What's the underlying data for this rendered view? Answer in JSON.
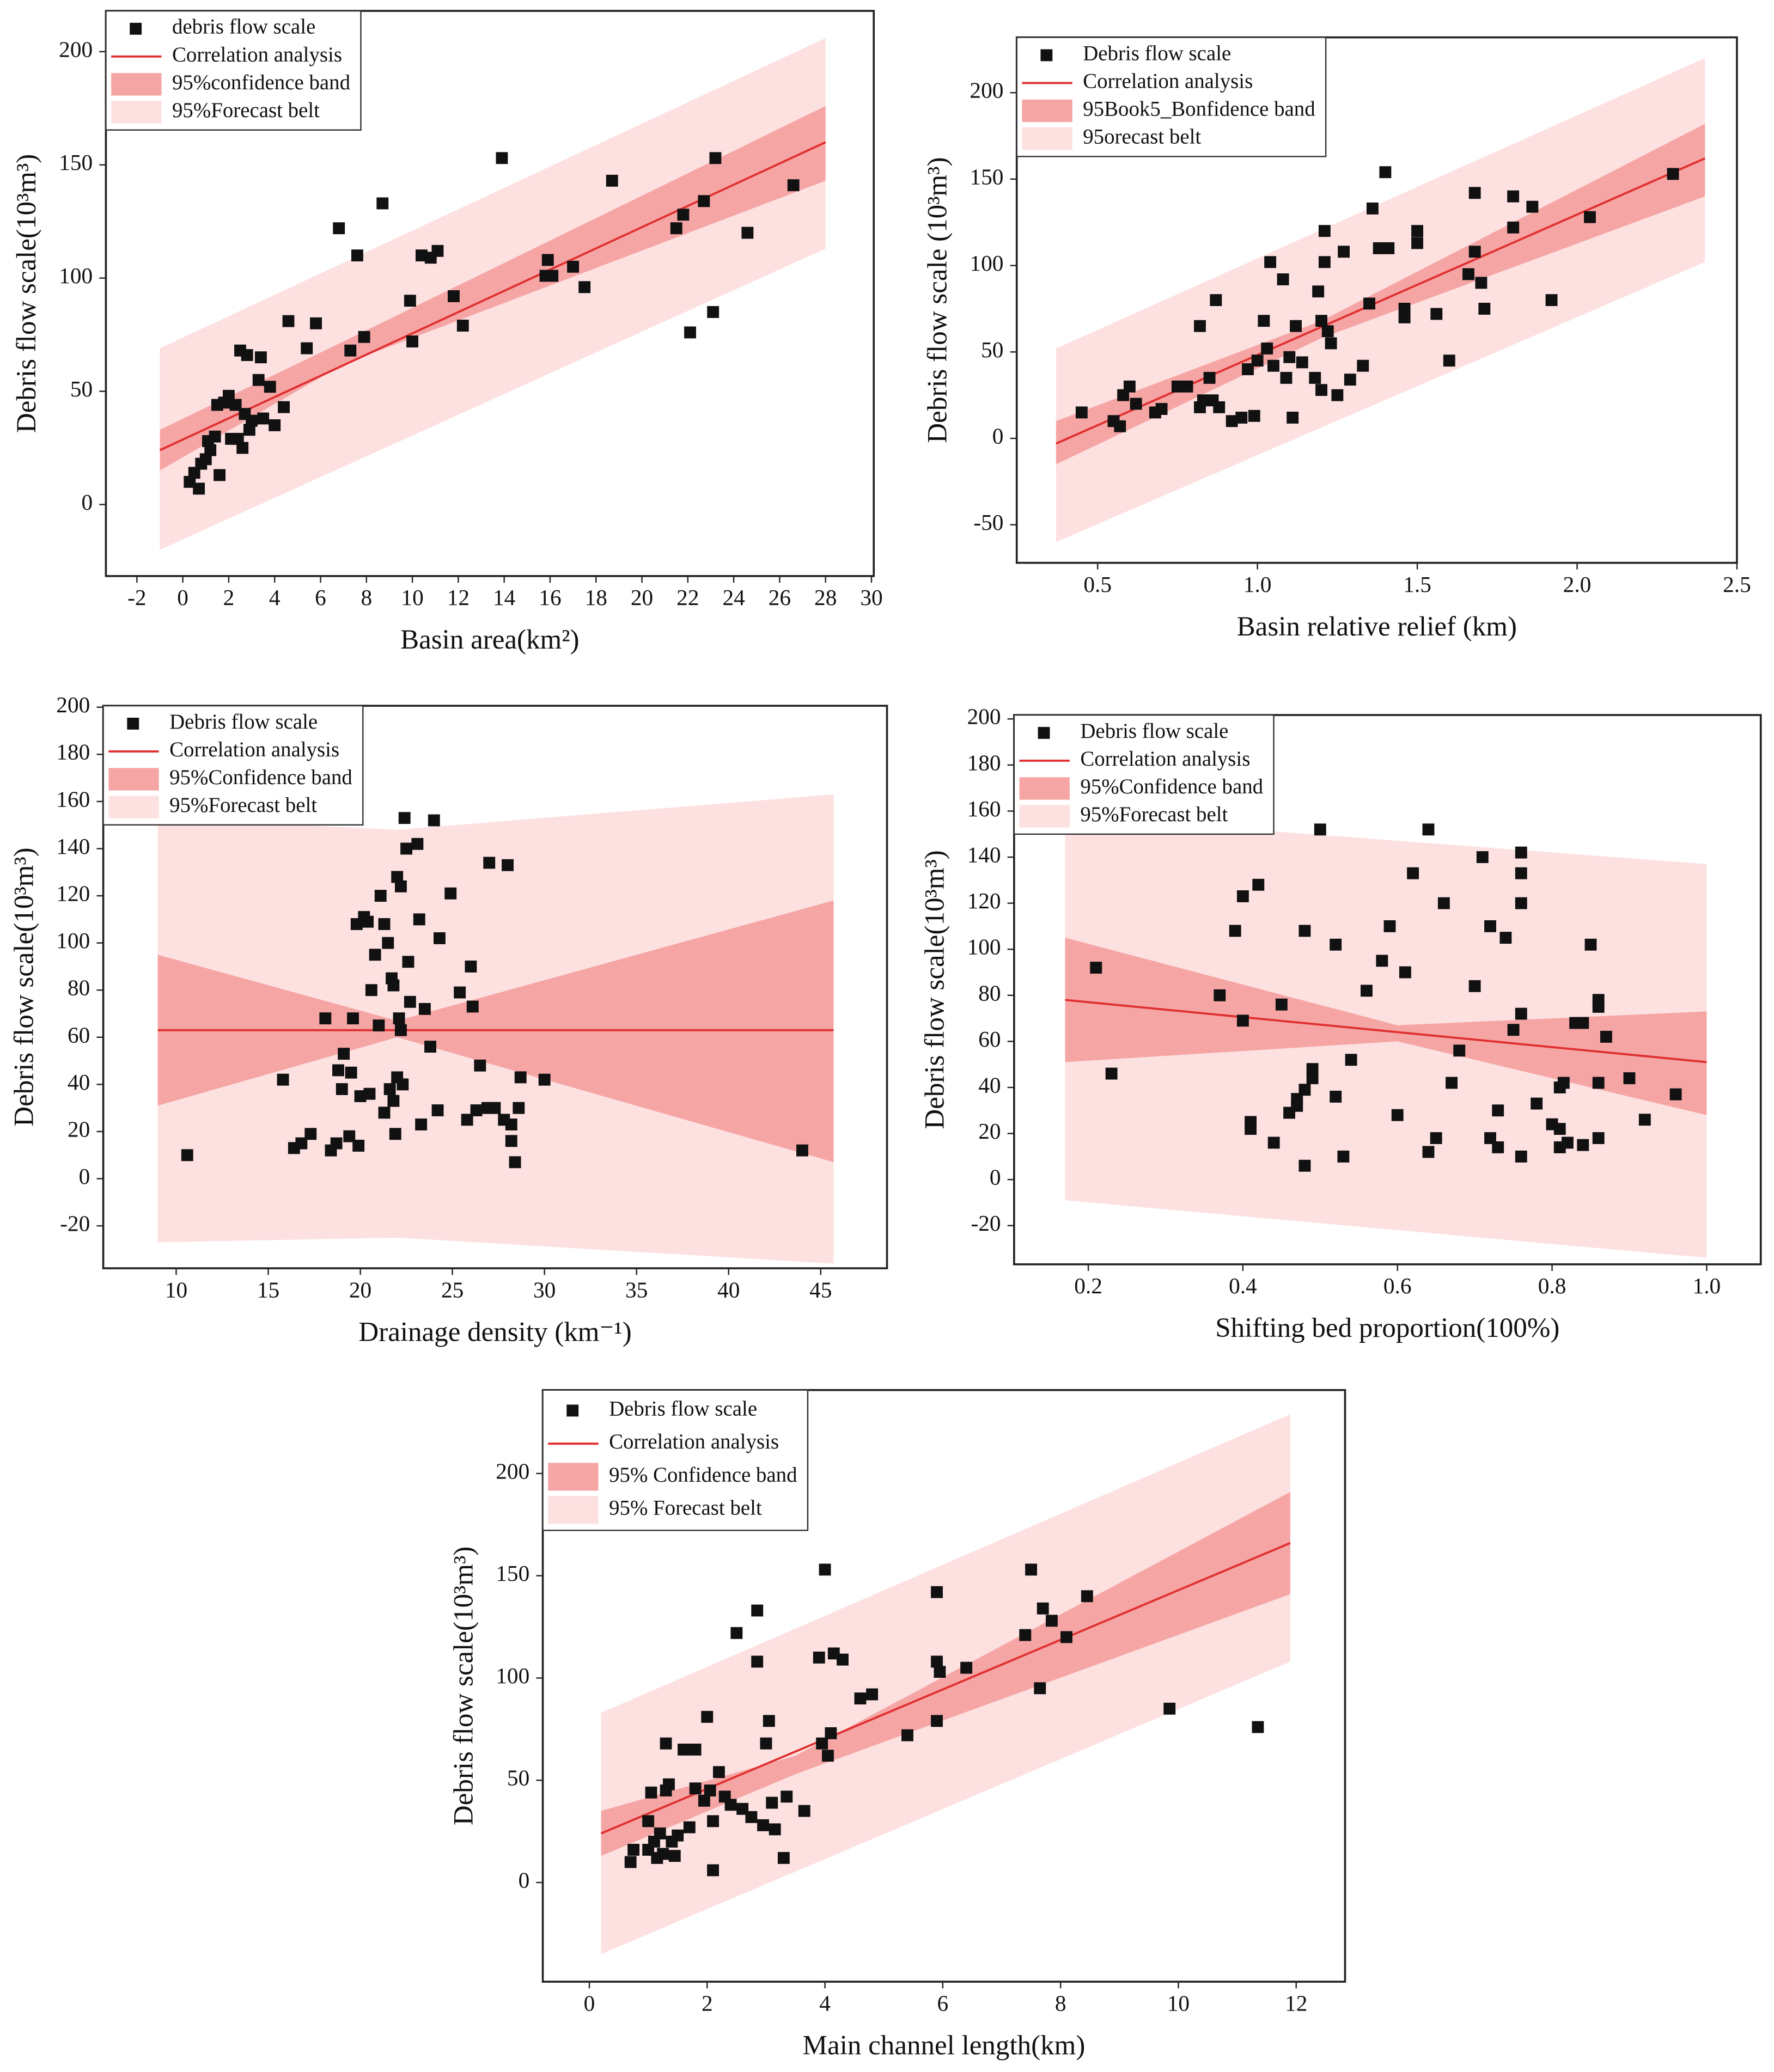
{
  "chart_data": [
    {
      "type": "scatter",
      "xlabel": "Basin area(km²)",
      "ylabel": "Debris flow scale(10³m³)",
      "legend": "upper left",
      "xlim": [
        -3.35,
        30.1
      ],
      "ylim": [
        -31.6,
        218
      ],
      "xticks": [
        -2,
        0,
        2,
        4,
        6,
        8,
        10,
        12,
        14,
        16,
        18,
        20,
        22,
        24,
        26,
        28,
        30
      ],
      "yticks": [
        0,
        50,
        100,
        150,
        200
      ],
      "series": [
        {
          "name": "debris flow scale",
          "type": "scatter",
          "color": "#111111",
          "x": [
            0.3,
            0.5,
            0.7,
            0.8,
            1,
            1.1,
            1.2,
            1.4,
            1.5,
            1.6,
            1.8,
            2,
            2.1,
            2.3,
            2.4,
            2.5,
            2.6,
            2.7,
            2.8,
            2.9,
            3,
            3.3,
            3.4,
            3.5,
            3.8,
            4,
            4.4,
            4.6,
            5.4,
            5.8,
            6.8,
            7.3,
            7.6,
            7.9,
            8.7,
            9.9,
            10,
            10.4,
            10.8,
            11.1,
            11.8,
            12.2,
            13.9,
            15.8,
            15.9,
            16.1,
            17,
            17.5,
            18.7,
            21.5,
            21.8,
            22.1,
            22.7,
            23.1,
            23.2,
            24.6,
            26.6
          ],
          "values": [
            10,
            14,
            7,
            18,
            20,
            28,
            24,
            30,
            44,
            13,
            45,
            48,
            29,
            44,
            29,
            68,
            25,
            40,
            66,
            33,
            37,
            55,
            65,
            38,
            52,
            35,
            43,
            81,
            69,
            80,
            122,
            68,
            110,
            74,
            133,
            90,
            72,
            110,
            109,
            112,
            92,
            79,
            153,
            101,
            108,
            101,
            105,
            96,
            143,
            122,
            128,
            76,
            134,
            85,
            153,
            120,
            141
          ]
        },
        {
          "name": "Correlation analysis",
          "type": "line",
          "color": "#e03030",
          "x": [
            -1,
            28
          ],
          "values": [
            24,
            160
          ]
        },
        {
          "name": "95%confidence band",
          "type": "band",
          "color": "#f6a5a5",
          "x": [
            -1,
            7,
            28
          ],
          "lower": [
            15,
            62,
            143
          ],
          "upper": [
            33,
            72,
            176
          ]
        },
        {
          "name": "95%Forecast belt",
          "type": "band",
          "color": "#fde1e1",
          "x": [
            -1,
            28
          ],
          "lower": [
            -20,
            113
          ],
          "upper": [
            69,
            206
          ]
        }
      ]
    },
    {
      "type": "scatter",
      "xlabel": "Basin relative relief (km)",
      "ylabel": "Debris flow scale (10³m³)",
      "legend": "upper left",
      "xlim": [
        0.247,
        2.5
      ],
      "ylim": [
        -72,
        232
      ],
      "xticks": [
        0.5,
        {
          "value": 1,
          "label": "1.0"
        },
        1.5,
        {
          "value": 2,
          "label": "2.0"
        },
        2.5
      ],
      "yticks": [
        -50,
        0,
        50,
        100,
        150,
        200
      ],
      "series": [
        {
          "name": "Debris flow scale",
          "type": "scatter",
          "color": "#111111",
          "x": [
            0.45,
            0.55,
            0.57,
            0.58,
            0.6,
            0.62,
            0.68,
            0.7,
            0.75,
            0.78,
            0.82,
            0.82,
            0.83,
            0.85,
            0.86,
            0.87,
            0.88,
            0.92,
            0.95,
            0.97,
            0.99,
            1,
            1.02,
            1.03,
            1.04,
            1.05,
            1.08,
            1.09,
            1.1,
            1.11,
            1.12,
            1.14,
            1.18,
            1.19,
            1.2,
            1.2,
            1.21,
            1.21,
            1.22,
            1.23,
            1.25,
            1.27,
            1.29,
            1.33,
            1.35,
            1.36,
            1.38,
            1.4,
            1.41,
            1.46,
            1.46,
            1.5,
            1.5,
            1.56,
            1.6,
            1.66,
            1.68,
            1.68,
            1.7,
            1.71,
            1.8,
            1.8,
            1.86,
            1.92,
            2.04,
            2.3
          ],
          "values": [
            15,
            10,
            7,
            25,
            30,
            20,
            15,
            17,
            30,
            30,
            18,
            65,
            22,
            35,
            22,
            80,
            18,
            10,
            12,
            40,
            13,
            45,
            68,
            52,
            102,
            42,
            92,
            35,
            47,
            12,
            65,
            44,
            35,
            85,
            68,
            28,
            102,
            120,
            62,
            55,
            25,
            108,
            34,
            42,
            78,
            133,
            110,
            154,
            110,
            70,
            75,
            113,
            120,
            72,
            45,
            95,
            108,
            142,
            90,
            75,
            122,
            140,
            134,
            80,
            128,
            153
          ]
        },
        {
          "name": "Correlation analysis",
          "type": "line",
          "color": "#e03030",
          "x": [
            0.37,
            2.4
          ],
          "values": [
            -3,
            162
          ]
        },
        {
          "name": "95Book5_Bonfidence band",
          "type": "band",
          "color": "#f6a5a5",
          "x": [
            0.37,
            1.2,
            2.4
          ],
          "lower": [
            -15,
            58,
            140
          ],
          "upper": [
            10,
            68,
            182
          ]
        },
        {
          "name": "95orecast belt",
          "type": "band",
          "color": "#fde1e1",
          "x": [
            0.37,
            2.4
          ],
          "lower": [
            -60,
            102
          ],
          "upper": [
            52,
            220
          ]
        }
      ]
    },
    {
      "type": "scatter",
      "xlabel": "Drainage density (km⁻¹)",
      "ylabel": "Debris flow scale(10³m³)",
      "legend": "upper left",
      "xlim": [
        6.04,
        48.6
      ],
      "ylim": [
        -38,
        200.6
      ],
      "xticks": [
        10,
        15,
        20,
        25,
        30,
        35,
        40,
        45
      ],
      "yticks": [
        -20,
        0,
        20,
        40,
        60,
        80,
        100,
        120,
        140,
        160,
        180,
        200
      ],
      "series": [
        {
          "name": "Debris flow scale",
          "type": "scatter",
          "color": "#111111",
          "x": [
            10.6,
            15.8,
            16.4,
            16.8,
            17.3,
            18.1,
            18.4,
            18.7,
            18.8,
            19,
            19.1,
            19.4,
            19.5,
            19.6,
            19.8,
            19.9,
            20,
            20.2,
            20.4,
            20.5,
            20.6,
            20.8,
            21,
            21.1,
            21.3,
            21.3,
            21.5,
            21.6,
            21.7,
            21.8,
            21.8,
            21.9,
            22,
            22,
            22.1,
            22.2,
            22.2,
            22.3,
            22.4,
            22.5,
            22.6,
            22.7,
            23.1,
            23.2,
            23.3,
            23.5,
            23.8,
            24,
            24.2,
            24.3,
            24.9,
            25.4,
            25.8,
            26,
            26.1,
            26.3,
            26.5,
            26.9,
            27,
            27.3,
            27.8,
            28,
            28.2,
            28.2,
            28.4,
            28.6,
            28.7,
            30,
            44
          ],
          "values": [
            10,
            42,
            13,
            15,
            19,
            68,
            12,
            15,
            46,
            38,
            53,
            18,
            45,
            68,
            108,
            14,
            35,
            111,
            109,
            36,
            80,
            95,
            65,
            120,
            28,
            108,
            100,
            38,
            85,
            82,
            33,
            19,
            43,
            128,
            68,
            124,
            63,
            40,
            153,
            140,
            92,
            75,
            142,
            110,
            23,
            72,
            56,
            152,
            29,
            102,
            121,
            79,
            25,
            90,
            73,
            29,
            48,
            30,
            134,
            30,
            25,
            133,
            16,
            23,
            7,
            30,
            43,
            42,
            12
          ]
        },
        {
          "name": "Correlation analysis",
          "type": "line",
          "color": "#e03030",
          "x": [
            9,
            45.7
          ],
          "values": [
            63,
            63
          ]
        },
        {
          "name": "95%Confidence band",
          "type": "band",
          "color": "#f6a5a5",
          "x": [
            9,
            22,
            45.7
          ],
          "lower": [
            31,
            60,
            7
          ],
          "upper": [
            95,
            67,
            118
          ]
        },
        {
          "name": "95%Forecast belt",
          "type": "band",
          "color": "#fde1e1",
          "x": [
            9,
            22,
            45.7
          ],
          "lower": [
            -27,
            -25,
            -36
          ],
          "upper": [
            153,
            148,
            163
          ]
        }
      ]
    },
    {
      "type": "scatter",
      "xlabel": "Shifting bed proportion(100%)",
      "ylabel": "Debris flow scale(10³m³)",
      "legend": "upper left",
      "xlim": [
        0.104,
        1.07
      ],
      "ylim": [
        -36.8,
        201.7
      ],
      "xticks": [
        0.2,
        0.4,
        0.6,
        0.8,
        {
          "value": 1,
          "label": "1.0"
        }
      ],
      "yticks": [
        -20,
        0,
        20,
        40,
        60,
        80,
        100,
        120,
        140,
        160,
        180,
        200
      ],
      "series": [
        {
          "name": "Debris flow scale",
          "type": "scatter",
          "color": "#111111",
          "x": [
            0.21,
            0.23,
            0.37,
            0.39,
            0.4,
            0.4,
            0.41,
            0.41,
            0.42,
            0.44,
            0.45,
            0.46,
            0.47,
            0.47,
            0.48,
            0.48,
            0.48,
            0.49,
            0.49,
            0.5,
            0.52,
            0.52,
            0.53,
            0.54,
            0.56,
            0.58,
            0.59,
            0.6,
            0.61,
            0.62,
            0.64,
            0.64,
            0.65,
            0.66,
            0.67,
            0.68,
            0.7,
            0.71,
            0.73,
            0.74,
            0.72,
            0.72,
            0.73,
            0.75,
            0.76,
            0.76,
            0.76,
            0.76,
            0.76,
            0.78,
            0.8,
            0.81,
            0.815,
            0.81,
            0.81,
            0.82,
            0.83,
            0.84,
            0.85,
            0.84,
            0.86,
            0.86,
            0.86,
            0.86,
            0.87,
            0.9,
            0.92,
            0.96
          ],
          "values": [
            92,
            46,
            80,
            108,
            69,
            123,
            25,
            22,
            128,
            16,
            76,
            29,
            35,
            32,
            39,
            108,
            6,
            48,
            44,
            152,
            102,
            36,
            10,
            52,
            82,
            95,
            110,
            28,
            90,
            133,
            152,
            12,
            18,
            120,
            42,
            56,
            84,
            140,
            30,
            105,
            110,
            18,
            14,
            65,
            142,
            133,
            120,
            72,
            10,
            33,
            24,
            40,
            42,
            22,
            14,
            16,
            68,
            68,
            102,
            15,
            78,
            75,
            42,
            18,
            62,
            44,
            26,
            37
          ]
        },
        {
          "name": "Correlation analysis",
          "type": "line",
          "color": "#e03030",
          "x": [
            0.17,
            1
          ],
          "values": [
            78,
            51
          ]
        },
        {
          "name": "95%Confidence band",
          "type": "band",
          "color": "#f6a5a5",
          "x": [
            0.17,
            0.6,
            1
          ],
          "lower": [
            51,
            60,
            28
          ],
          "upper": [
            105,
            67,
            73
          ]
        },
        {
          "name": "95%Forecast belt",
          "type": "band",
          "color": "#fde1e1",
          "x": [
            0.17,
            1
          ],
          "lower": [
            -9,
            -34
          ],
          "upper": [
            158,
            137
          ]
        }
      ]
    },
    {
      "type": "scatter",
      "xlabel": "Main channel length(km)",
      "ylabel": "Debris flow scale(10³m³)",
      "legend": "upper left",
      "xlim": [
        -0.79,
        12.83
      ],
      "ylim": [
        -48.5,
        240.8
      ],
      "xticks": [
        0,
        2,
        4,
        6,
        8,
        10,
        12
      ],
      "yticks": [
        0,
        50,
        100,
        150,
        200
      ],
      "series": [
        {
          "name": "Debris flow scale",
          "type": "scatter",
          "color": "#111111",
          "x": [
            0.7,
            0.75,
            1,
            1,
            1.05,
            1.1,
            1.15,
            1.2,
            1.25,
            1.3,
            1.3,
            1.35,
            1.4,
            1.45,
            1.5,
            1.6,
            1.7,
            1.8,
            1.8,
            1.95,
            2,
            2.05,
            2.1,
            2.1,
            2.2,
            2.3,
            2.4,
            2.5,
            2.6,
            2.75,
            2.85,
            2.85,
            2.95,
            3,
            3.05,
            3.1,
            3.15,
            3.3,
            3.35,
            3.65,
            3.9,
            3.95,
            4.05,
            4,
            4.1,
            4.15,
            4.3,
            4.6,
            4.8,
            5.4,
            5.9,
            5.9,
            5.9,
            5.95,
            6.4,
            7.4,
            7.5,
            7.65,
            7.7,
            7.85,
            8.1,
            8.45,
            9.85,
            11.35
          ],
          "values": [
            10,
            16,
            16,
            30,
            44,
            20,
            12,
            24,
            14,
            68,
            45,
            48,
            20,
            13,
            23,
            65,
            27,
            65,
            46,
            40,
            81,
            45,
            6,
            30,
            54,
            42,
            38,
            122,
            36,
            32,
            133,
            108,
            28,
            68,
            79,
            39,
            26,
            12,
            42,
            35,
            110,
            68,
            62,
            153,
            73,
            112,
            109,
            90,
            92,
            72,
            79,
            142,
            108,
            103,
            105,
            121,
            153,
            95,
            134,
            128,
            120,
            140,
            85,
            76
          ]
        },
        {
          "name": "Correlation analysis",
          "type": "line",
          "color": "#e03030",
          "x": [
            0.2,
            11.9
          ],
          "values": [
            24,
            166
          ]
        },
        {
          "name": "95% Confidence band",
          "type": "band",
          "color": "#f6a5a5",
          "x": [
            0.2,
            3.5,
            11.9
          ],
          "lower": [
            13,
            53,
            141
          ],
          "upper": [
            35,
            62,
            191
          ]
        },
        {
          "name": "95% Forecast belt",
          "type": "band",
          "color": "#fde1e1",
          "x": [
            0.2,
            11.9
          ],
          "lower": [
            -35,
            108
          ],
          "upper": [
            83,
            229
          ]
        }
      ]
    }
  ]
}
